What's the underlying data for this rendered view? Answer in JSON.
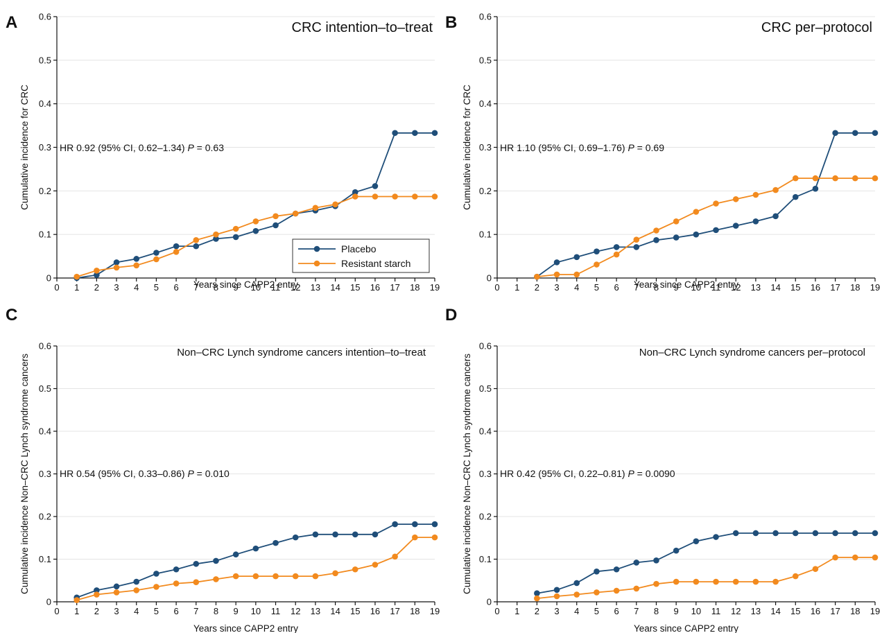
{
  "colors": {
    "placebo": "#1f4e79",
    "resistant_starch": "#f28a1e"
  },
  "legend": [
    {
      "name": "Placebo",
      "color": "#1f4e79"
    },
    {
      "name": "Resistant starch",
      "color": "#f28a1e"
    }
  ],
  "chart_data": [
    {
      "panel": "A",
      "type": "line",
      "title": "CRC intention–to–treat",
      "annotation": {
        "prefix": "HR 0.92 (95% CI, 0.62–1.34) ",
        "p_label": "P",
        "p_value": " = 0.63"
      },
      "xlabel": "Years since CAPP2 entry",
      "ylabel": "Cumulative incidence for CRC",
      "xlim": [
        0,
        19
      ],
      "ylim": [
        0,
        0.6
      ],
      "xticks": [
        0,
        1,
        2,
        3,
        4,
        5,
        6,
        7,
        8,
        9,
        10,
        11,
        12,
        13,
        14,
        15,
        16,
        17,
        18,
        19
      ],
      "yticks": [
        0,
        0.1,
        0.2,
        0.3,
        0.4,
        0.5,
        0.6
      ],
      "ytick_labels": [
        "0",
        "0.1",
        "0.2",
        "0.3",
        "0.4",
        "0.5",
        "0.6"
      ],
      "grid": true,
      "legend_position": "bottom-right",
      "series": [
        {
          "name": "Placebo",
          "x": [
            1,
            2,
            3,
            4,
            5,
            6,
            7,
            8,
            9,
            10,
            11,
            12,
            13,
            14,
            15,
            16,
            17,
            18,
            19
          ],
          "values": [
            0.0,
            0.007,
            0.036,
            0.044,
            0.058,
            0.073,
            0.073,
            0.09,
            0.094,
            0.108,
            0.121,
            0.148,
            0.155,
            0.165,
            0.197,
            0.211,
            0.333,
            0.333,
            0.333
          ]
        },
        {
          "name": "Resistant starch",
          "x": [
            1,
            2,
            3,
            4,
            5,
            6,
            7,
            8,
            9,
            10,
            11,
            12,
            13,
            14,
            15,
            16,
            17,
            18,
            19
          ],
          "values": [
            0.003,
            0.017,
            0.024,
            0.029,
            0.043,
            0.06,
            0.087,
            0.1,
            0.113,
            0.13,
            0.142,
            0.148,
            0.161,
            0.169,
            0.187,
            0.187,
            0.187,
            0.187,
            0.187
          ]
        }
      ]
    },
    {
      "panel": "B",
      "type": "line",
      "title": "CRC per–protocol",
      "annotation": {
        "prefix": "HR 1.10 (95% CI, 0.69–1.76) ",
        "p_label": "P",
        "p_value": " = 0.69"
      },
      "xlabel": "Years since CAPP2 entry",
      "ylabel": "Cumulative incidence for CRC",
      "xlim": [
        0,
        19
      ],
      "ylim": [
        0,
        0.6
      ],
      "xticks": [
        0,
        1,
        2,
        3,
        4,
        5,
        6,
        7,
        8,
        9,
        10,
        11,
        12,
        13,
        14,
        15,
        16,
        17,
        18,
        19
      ],
      "yticks": [
        0,
        0.1,
        0.2,
        0.3,
        0.4,
        0.5,
        0.6
      ],
      "ytick_labels": [
        "0",
        "0.1",
        "0.2",
        "0.3",
        "0.4",
        "0.5",
        "0.6"
      ],
      "grid": true,
      "series": [
        {
          "name": "Placebo",
          "x": [
            2,
            3,
            4,
            5,
            6,
            7,
            8,
            9,
            10,
            11,
            12,
            13,
            14,
            15,
            16,
            17,
            18,
            19
          ],
          "values": [
            0.003,
            0.036,
            0.048,
            0.061,
            0.071,
            0.071,
            0.087,
            0.093,
            0.1,
            0.11,
            0.12,
            0.13,
            0.142,
            0.186,
            0.205,
            0.333,
            0.333,
            0.333
          ]
        },
        {
          "name": "Resistant starch",
          "x": [
            2,
            3,
            4,
            5,
            6,
            7,
            8,
            9,
            10,
            11,
            12,
            13,
            14,
            15,
            16,
            17,
            18,
            19
          ],
          "values": [
            0.003,
            0.008,
            0.008,
            0.031,
            0.054,
            0.088,
            0.109,
            0.13,
            0.152,
            0.171,
            0.181,
            0.191,
            0.202,
            0.229,
            0.229,
            0.229,
            0.229,
            0.229
          ]
        }
      ]
    },
    {
      "panel": "C",
      "type": "line",
      "title": "Non–CRC Lynch syndrome cancers intention–to–treat",
      "annotation": {
        "prefix": "HR 0.54 (95% CI, 0.33–0.86) ",
        "p_label": "P",
        "p_value": " = 0.010"
      },
      "xlabel": "Years since CAPP2 entry",
      "ylabel": "Cumulative incidence Non–CRC Lynch syndrome cancers",
      "xlim": [
        0,
        19
      ],
      "ylim": [
        0,
        0.6
      ],
      "xticks": [
        0,
        1,
        2,
        3,
        4,
        5,
        6,
        7,
        8,
        9,
        10,
        11,
        12,
        13,
        14,
        15,
        16,
        17,
        18,
        19
      ],
      "yticks": [
        0,
        0.1,
        0.2,
        0.3,
        0.4,
        0.5,
        0.6
      ],
      "ytick_labels": [
        "0",
        "0.1",
        "0.2",
        "0.3",
        "0.4",
        "0.5",
        "0.6"
      ],
      "grid": true,
      "series": [
        {
          "name": "Placebo",
          "x": [
            1,
            2,
            3,
            4,
            5,
            6,
            7,
            8,
            9,
            10,
            11,
            12,
            13,
            14,
            15,
            16,
            17,
            18,
            19
          ],
          "values": [
            0.01,
            0.027,
            0.036,
            0.047,
            0.066,
            0.076,
            0.089,
            0.096,
            0.111,
            0.125,
            0.138,
            0.151,
            0.158,
            0.158,
            0.158,
            0.158,
            0.182,
            0.182,
            0.182
          ]
        },
        {
          "name": "Resistant starch",
          "x": [
            1,
            2,
            3,
            4,
            5,
            6,
            7,
            8,
            9,
            10,
            11,
            12,
            13,
            14,
            15,
            16,
            17,
            18,
            19
          ],
          "values": [
            0.004,
            0.017,
            0.022,
            0.027,
            0.035,
            0.043,
            0.046,
            0.053,
            0.06,
            0.06,
            0.06,
            0.06,
            0.06,
            0.067,
            0.076,
            0.087,
            0.106,
            0.151,
            0.151
          ]
        }
      ]
    },
    {
      "panel": "D",
      "type": "line",
      "title": "Non–CRC Lynch syndrome cancers per–protocol",
      "annotation": {
        "prefix": "HR 0.42 (95% CI, 0.22–0.81) ",
        "p_label": "P",
        "p_value": " = 0.0090"
      },
      "xlabel": "Years since CAPP2 entry",
      "ylabel": "Cumulative incidence Non–CRC Lynch syndrome cancers",
      "xlim": [
        0,
        19
      ],
      "ylim": [
        0,
        0.6
      ],
      "xticks": [
        0,
        1,
        2,
        3,
        4,
        5,
        6,
        7,
        8,
        9,
        10,
        11,
        12,
        13,
        14,
        15,
        16,
        17,
        18,
        19
      ],
      "yticks": [
        0,
        0.1,
        0.2,
        0.3,
        0.4,
        0.5,
        0.6
      ],
      "ytick_labels": [
        "0",
        "0.1",
        "0.2",
        "0.3",
        "0.4",
        "0.5",
        "0.6"
      ],
      "grid": true,
      "series": [
        {
          "name": "Placebo",
          "x": [
            2,
            3,
            4,
            5,
            6,
            7,
            8,
            9,
            10,
            11,
            12,
            13,
            14,
            15,
            16,
            17,
            18,
            19
          ],
          "values": [
            0.02,
            0.028,
            0.044,
            0.071,
            0.076,
            0.092,
            0.097,
            0.12,
            0.142,
            0.152,
            0.161,
            0.161,
            0.161,
            0.161,
            0.161,
            0.161,
            0.161,
            0.161
          ]
        },
        {
          "name": "Resistant starch",
          "x": [
            2,
            3,
            4,
            5,
            6,
            7,
            8,
            9,
            10,
            11,
            12,
            13,
            14,
            15,
            16,
            17,
            18,
            19
          ],
          "values": [
            0.008,
            0.013,
            0.017,
            0.022,
            0.026,
            0.031,
            0.042,
            0.047,
            0.047,
            0.047,
            0.047,
            0.047,
            0.047,
            0.06,
            0.077,
            0.104,
            0.104,
            0.104
          ]
        }
      ]
    }
  ]
}
